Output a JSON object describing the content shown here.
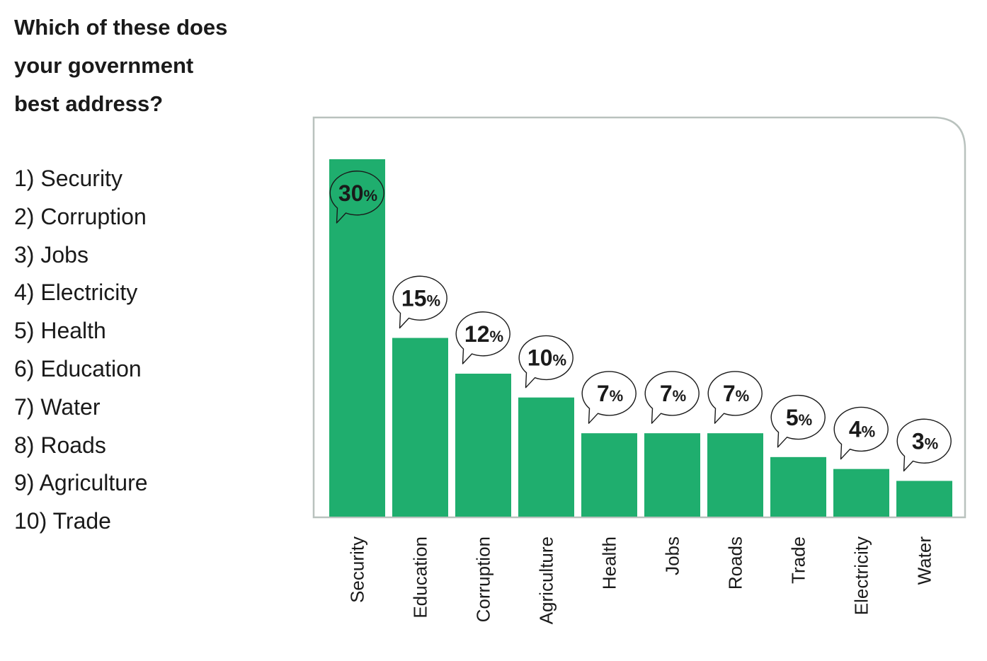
{
  "question": {
    "lines": [
      "Which of these does",
      "your government",
      "best address?"
    ]
  },
  "options": [
    "1) Security",
    "2) Corruption",
    "3) Jobs",
    "4) Electricity",
    "5) Health",
    "6) Education",
    "7) Water",
    "8) Roads",
    "9) Agriculture",
    "10) Trade"
  ],
  "colors": {
    "bar": "#1fae6e",
    "frame": "#b9c2be",
    "text": "#1a1a1a"
  },
  "chart_data": {
    "type": "bar",
    "categories": [
      "Security",
      "Education",
      "Corruption",
      "Agriculture",
      "Health",
      "Jobs",
      "Roads",
      "Trade",
      "Electricity",
      "Water"
    ],
    "values": [
      30,
      15,
      12,
      10,
      7,
      7,
      7,
      5,
      4,
      3
    ],
    "value_suffix": "%",
    "ylim": [
      0,
      30
    ],
    "grid": false
  }
}
